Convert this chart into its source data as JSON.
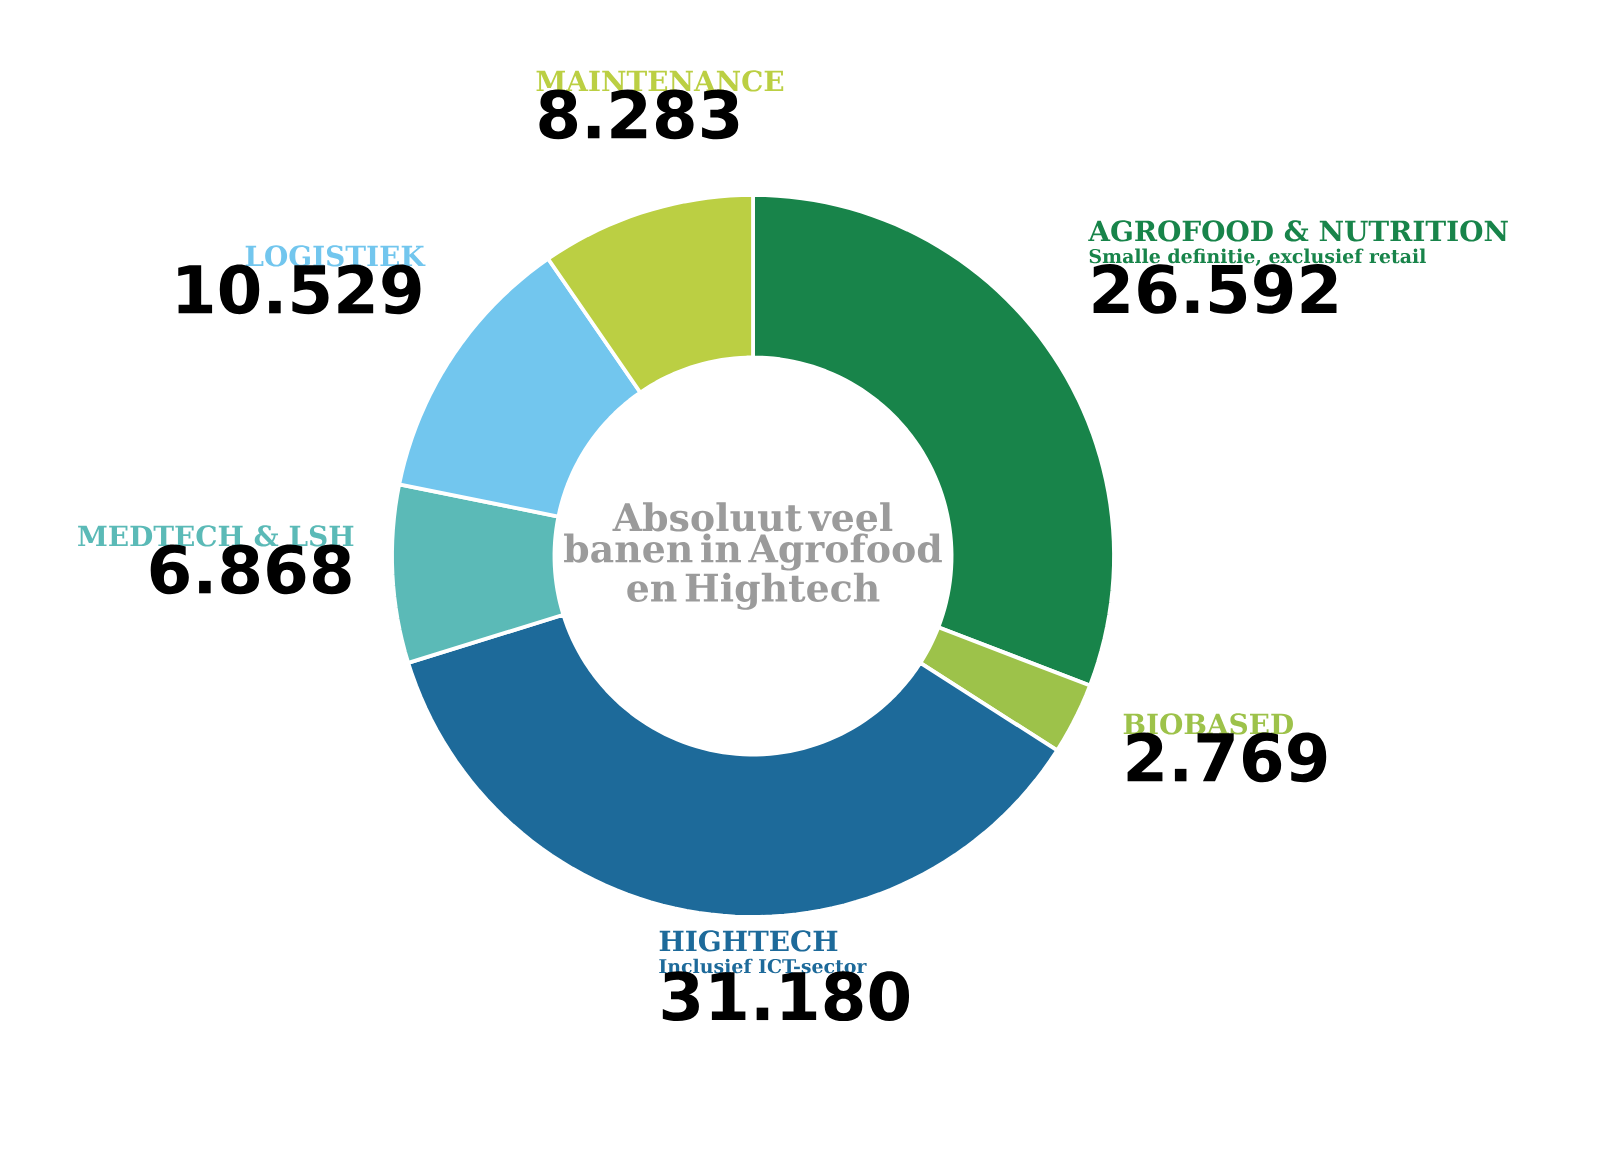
{
  "chart_data": {
    "type": "donut",
    "title": "Absoluut veel banen in Agrofood en Hightech",
    "categories": [
      "AGROFOOD & NUTRITION",
      "BIOBASED",
      "HIGHTECH",
      "MEDTECH & LSH",
      "LOGISTIEK",
      "MAINTENANCE"
    ],
    "values": [
      26592,
      2769,
      31180,
      6868,
      10529,
      8283
    ],
    "colors": [
      "#18844a",
      "#9dc24a",
      "#1d6a9a",
      "#5bbab7",
      "#72c6ee",
      "#bbcf43"
    ],
    "value_labels": [
      "26.592",
      "2.769",
      "31.180",
      "6.868",
      "10.529",
      "8.283"
    ],
    "annotations": [
      "Smalle definitie, exclusief retail",
      "Inclusief ICT-sector"
    ]
  }
}
